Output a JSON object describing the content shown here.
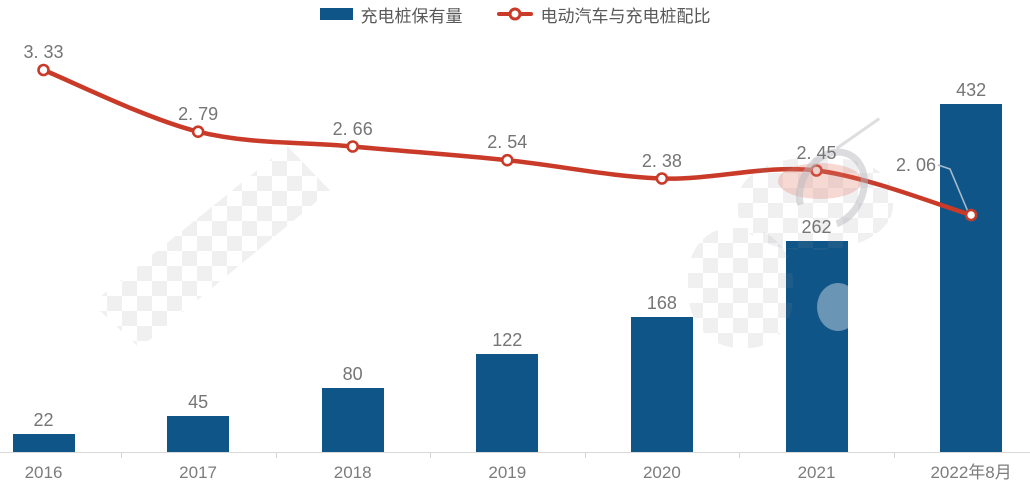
{
  "legend": {
    "items": [
      {
        "label": "充电桩保有量",
        "marker": "bar-swatch"
      },
      {
        "label": "电动汽车与充电桩配比",
        "marker": "line-open-circle"
      }
    ]
  },
  "chart_data": {
    "type": "combo",
    "categories": [
      "2016",
      "2017",
      "2018",
      "2019",
      "2020",
      "2021",
      "2022年8月"
    ],
    "series": [
      {
        "name": "充电桩保有量",
        "type": "bar",
        "values": [
          22,
          45,
          80,
          122,
          168,
          262,
          432
        ],
        "labels": [
          "22",
          "45",
          "80",
          "122",
          "168",
          "262",
          "432"
        ],
        "color": "#0F5588"
      },
      {
        "name": "电动汽车与充电桩配比",
        "type": "line",
        "values": [
          3.33,
          2.79,
          2.66,
          2.54,
          2.38,
          2.45,
          2.06
        ],
        "labels": [
          "3. 33",
          "2. 79",
          "2. 66",
          "2. 54",
          "2. 38",
          "2. 45",
          "2. 06"
        ],
        "color": "#C93A28",
        "marker": "open-circle"
      }
    ],
    "title": "",
    "xlabel": "",
    "ylabel": "",
    "legend_position": "top",
    "grid": false,
    "value_labels": true,
    "axis_line_color": "#D9D9D9",
    "label_text_color": "#757575",
    "axis_text_color": "#7c7c7c",
    "annotations": [
      {
        "type": "leader_line",
        "label": "2. 06",
        "category": "2022年8月",
        "color": "#A9BCCB"
      }
    ],
    "watermarks": [
      "pixelated-mosaic-left-diagonal",
      "pixelated-mosaic-right-blob"
    ]
  }
}
